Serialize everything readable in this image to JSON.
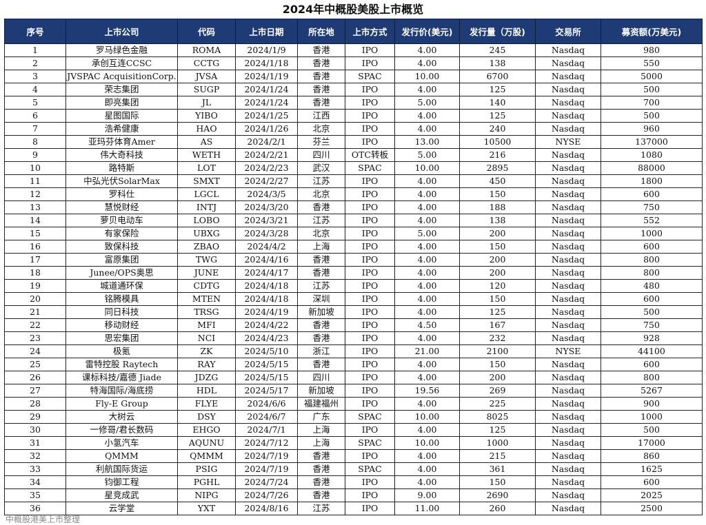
{
  "title": "2024年中概股美股上市概览",
  "footer": "中概股港美上市整理",
  "columns": [
    "序号",
    "上市公司",
    "代码",
    "上市日期",
    "所在地",
    "上市方式",
    "发行价(美元)",
    "发行量（万股)",
    "交易所",
    "募资额(万美元)"
  ],
  "rows": [
    [
      "1",
      "罗马绿色金融",
      "ROMA",
      "2024/1/9",
      "香港",
      "IPO",
      "4.00",
      "245",
      "Nasdaq",
      "980"
    ],
    [
      "2",
      "承创互连CCSC",
      "CCTG",
      "2024/1/18",
      "香港",
      "IPO",
      "4.00",
      "138",
      "Nasdaq",
      "550"
    ],
    [
      "3",
      "JVSPAC AcquisitionCorp.",
      "JVSA",
      "2024/1/19",
      "香港",
      "SPAC",
      "10.00",
      "6700",
      "Nasdaq",
      "5000"
    ],
    [
      "4",
      "荣志集团",
      "SUGP",
      "2024/1/24",
      "香港",
      "IPO",
      "4.00",
      "125",
      "Nasdaq",
      "500"
    ],
    [
      "5",
      "即亮集团",
      "JL",
      "2024/1/24",
      "香港",
      "IPO",
      "5.00",
      "140",
      "Nasdaq",
      "700"
    ],
    [
      "6",
      "星图国际",
      "YIBO",
      "2024/1/25",
      "江西",
      "IPO",
      "4.00",
      "125",
      "Nasdaq",
      "500"
    ],
    [
      "7",
      "浩希健康",
      "HAO",
      "2024/1/26",
      "北京",
      "IPO",
      "4.00",
      "240",
      "Nasdaq",
      "960"
    ],
    [
      "8",
      "亚玛芬体育Amer",
      "AS",
      "2024/2/1",
      "芬兰",
      "IPO",
      "13.00",
      "10500",
      "NYSE",
      "137000"
    ],
    [
      "9",
      "伟大奇科技",
      "WETH",
      "2024/2/21",
      "四川",
      "OTC转板",
      "5.00",
      "216",
      "Nasdaq",
      "1080"
    ],
    [
      "10",
      "路特斯",
      "LOT",
      "2024/2/23",
      "武汉",
      "SPAC",
      "10.00",
      "2895",
      "Nasdaq",
      "88000"
    ],
    [
      "11",
      "中弘光伏SolarMax",
      "SMXT",
      "2024/2/27",
      "江苏",
      "IPO",
      "4.00",
      "450",
      "Nasdaq",
      "1800"
    ],
    [
      "12",
      "罗科仕",
      "LGCL",
      "2024/3/5",
      "北京",
      "IPO",
      "4.00",
      "150",
      "Nasdaq",
      "600"
    ],
    [
      "13",
      "慧悦财经",
      "INTJ",
      "2024/3/20",
      "香港",
      "IPO",
      "4.00",
      "188",
      "Nasdaq",
      "750"
    ],
    [
      "14",
      "萝贝电动车",
      "LOBO",
      "2024/3/21",
      "江苏",
      "IPO",
      "4.00",
      "138",
      "Nasdaq",
      "552"
    ],
    [
      "15",
      "有家保险",
      "UBXG",
      "2024/3/28",
      "北京",
      "IPO",
      "5.00",
      "200",
      "Nasdaq",
      "1000"
    ],
    [
      "16",
      "致保科技",
      "ZBAO",
      "2024/4/2",
      "上海",
      "IPO",
      "4.00",
      "150",
      "Nasdaq",
      "600"
    ],
    [
      "17",
      "富原集团",
      "TWG",
      "2024/4/16",
      "香港",
      "IPO",
      "4.00",
      "200",
      "Nasdaq",
      "800"
    ],
    [
      "18",
      "Junee/OPS奥思",
      "JUNE",
      "2024/4/17",
      "香港",
      "IPO",
      "4.00",
      "200",
      "Nasdaq",
      "800"
    ],
    [
      "19",
      "城道通环保",
      "CDTG",
      "2024/4/18",
      "江苏",
      "IPO",
      "4.00",
      "120",
      "Nasdaq",
      "480"
    ],
    [
      "20",
      "铭腾模具",
      "MTEN",
      "2024/4/18",
      "深圳",
      "IPO",
      "4.00",
      "150",
      "Nasdaq",
      "600"
    ],
    [
      "21",
      "同日科技",
      "TRSG",
      "2024/4/19",
      "新加坡",
      "IPO",
      "4.00",
      "125",
      "Nasdaq",
      "500"
    ],
    [
      "22",
      "移动财经",
      "MFI",
      "2024/4/22",
      "香港",
      "IPO",
      "4.50",
      "167",
      "Nasdaq",
      "750"
    ],
    [
      "23",
      "思宏集团",
      "NCI",
      "2024/4/23",
      "香港",
      "IPO",
      "4.00",
      "232",
      "Nasdaq",
      "928"
    ],
    [
      "24",
      "极氪",
      "ZK",
      "2024/5/10",
      "浙江",
      "IPO",
      "21.00",
      "2100",
      "NYSE",
      "44100"
    ],
    [
      "25",
      "雷特控股 Raytech",
      "RAY",
      "2024/5/15",
      "香港",
      "IPO",
      "4.00",
      "150",
      "Nasdaq",
      "600"
    ],
    [
      "26",
      "课标科技/嘉德 Jiade",
      "JDZG",
      "2024/5/15",
      "四川",
      "IPO",
      "4.00",
      "200",
      "Nasdaq",
      "800"
    ],
    [
      "27",
      "特海国际/海底捞",
      "HDL",
      "2024/5/17",
      "新加坡",
      "IPO",
      "19.56",
      "269",
      "Nasdaq",
      "5267"
    ],
    [
      "28",
      "Fly-E Group",
      "FLYE",
      "2024/6/6",
      "福建福州",
      "IPO",
      "4.00",
      "225",
      "Nasdaq",
      "900"
    ],
    [
      "29",
      "大树云",
      "DSY",
      "2024/6/7",
      "广东",
      "SPAC",
      "10.00",
      "8025",
      "Nasdaq",
      "1000"
    ],
    [
      "30",
      "一修哥/君长数码",
      "EHGO",
      "2024/7/1",
      "上海",
      "IPO",
      "4.00",
      "125",
      "Nasdaq",
      "500"
    ],
    [
      "31",
      "小氢汽车",
      "AQUNU",
      "2024/7/12",
      "上海",
      "SPAC",
      "10.00",
      "1000",
      "Nasdaq",
      "17000"
    ],
    [
      "32",
      "QMMM",
      "QMMM",
      "2024/7/19",
      "香港",
      "IPO",
      "4.00",
      "215",
      "Nasdaq",
      "860"
    ],
    [
      "33",
      "利航国际货运",
      "PSIG",
      "2024/7/19",
      "香港",
      "SPAC",
      "4.00",
      "361",
      "Nasdaq",
      "1625"
    ],
    [
      "34",
      "钧御工程",
      "PGHL",
      "2024/7/24",
      "香港",
      "IPO",
      "4.00",
      "150",
      "Nasdaq",
      "600"
    ],
    [
      "35",
      "星竞成武",
      "NIPG",
      "2024/7/26",
      "香港",
      "IPO",
      "9.00",
      "2690",
      "Nasdaq",
      "2025"
    ],
    [
      "36",
      "云学堂",
      "YXT",
      "2024/8/16",
      "江苏",
      "IPO",
      "11.00",
      "260",
      "Nasdaq",
      "2500"
    ]
  ]
}
